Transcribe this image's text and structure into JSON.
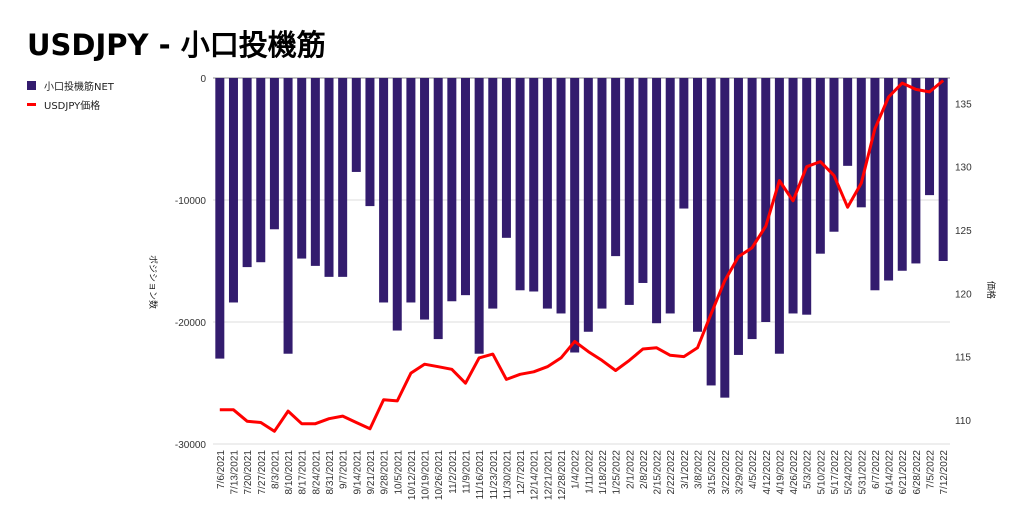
{
  "chart_data": {
    "type": "bar+line",
    "title": "USDJPY - 小口投機筋",
    "legend_position": "left",
    "ylabel_left": "ポジション数",
    "ylabel_right": "価格",
    "ylim_left": [
      -30000,
      0
    ],
    "yticks_left": [
      0,
      -10000,
      -20000,
      -30000
    ],
    "ylim_right": [
      108.1,
      137
    ],
    "yticks_right": [
      110,
      115,
      120,
      125,
      130,
      135
    ],
    "colors": {
      "bar": "#331c6e",
      "line": "#ff0000"
    },
    "categories": [
      "7/6/2021",
      "7/13/2021",
      "7/20/2021",
      "7/27/2021",
      "8/3/2021",
      "8/10/2021",
      "8/17/2021",
      "8/24/2021",
      "8/31/2021",
      "9/7/2021",
      "9/14/2021",
      "9/21/2021",
      "9/28/2021",
      "10/5/2021",
      "10/12/2021",
      "10/19/2021",
      "10/26/2021",
      "11/2/2021",
      "11/9/2021",
      "11/16/2021",
      "11/23/2021",
      "11/30/2021",
      "12/7/2021",
      "12/14/2021",
      "12/21/2021",
      "12/28/2021",
      "1/4/2022",
      "1/11/2022",
      "1/18/2022",
      "1/25/2022",
      "2/1/2022",
      "2/8/2022",
      "2/15/2022",
      "2/22/2022",
      "3/1/2022",
      "3/8/2022",
      "3/15/2022",
      "3/22/2022",
      "3/29/2022",
      "4/5/2022",
      "4/12/2022",
      "4/19/2022",
      "4/26/2022",
      "5/3/2022",
      "5/10/2022",
      "5/17/2022",
      "5/24/2022",
      "5/31/2022",
      "6/7/2022",
      "6/14/2022",
      "6/21/2022",
      "6/28/2022",
      "7/5/2022",
      "7/12/2022"
    ],
    "series": [
      {
        "name": "小口投機筋NET",
        "type": "bar",
        "axis": "left",
        "values": [
          -23000,
          -18400,
          -15500,
          -15100,
          -12400,
          -22600,
          -14800,
          -15400,
          -16300,
          -16300,
          -7700,
          -10500,
          -18400,
          -20700,
          -18400,
          -19800,
          -21400,
          -18300,
          -17800,
          -22600,
          -18900,
          -13100,
          -17400,
          -17500,
          -18900,
          -19300,
          -22500,
          -20800,
          -18900,
          -14600,
          -18600,
          -16800,
          -20100,
          -19300,
          -10700,
          -20800,
          -25200,
          -26200,
          -22700,
          -21400,
          -20000,
          -22600,
          -19300,
          -19400,
          -14400,
          -12600,
          -7200,
          -10600,
          -17400,
          -16600,
          -15800,
          -15200,
          -9600,
          -15000
        ]
      },
      {
        "name": "USDJPY価格",
        "type": "line",
        "axis": "right",
        "values": [
          110.8,
          110.8,
          109.9,
          109.8,
          109.1,
          110.7,
          109.7,
          109.7,
          110.1,
          110.3,
          109.8,
          109.3,
          111.6,
          111.5,
          113.7,
          114.4,
          114.2,
          114.0,
          112.9,
          114.9,
          115.2,
          113.2,
          113.6,
          113.8,
          114.2,
          114.9,
          116.2,
          115.4,
          114.7,
          113.9,
          114.7,
          115.6,
          115.7,
          115.1,
          115.0,
          115.7,
          118.4,
          121.0,
          122.9,
          123.6,
          125.3,
          128.9,
          127.3,
          130.0,
          130.4,
          129.3,
          126.8,
          128.7,
          133.0,
          135.5,
          136.6,
          136.1,
          135.9,
          136.8
        ]
      }
    ]
  }
}
